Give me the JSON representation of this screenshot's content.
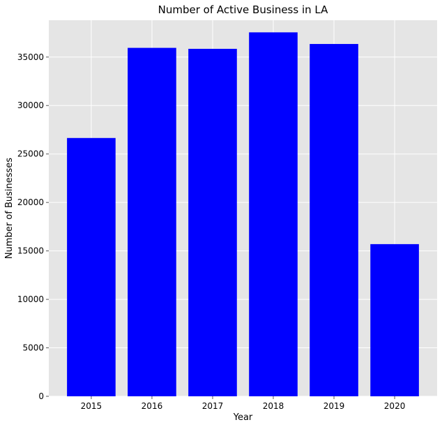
{
  "chart_data": {
    "type": "bar",
    "title": "Number of Active Business in LA",
    "xlabel": "Year",
    "ylabel": "Number of Businesses",
    "categories": [
      "2015",
      "2016",
      "2017",
      "2018",
      "2019",
      "2020"
    ],
    "values": [
      26650,
      35950,
      35850,
      37550,
      36350,
      15700
    ],
    "ylim": [
      0,
      38800
    ],
    "yticks": [
      0,
      5000,
      10000,
      15000,
      20000,
      25000,
      30000,
      35000
    ],
    "grid": true,
    "colors": {
      "bar": "#0000ff",
      "plot_background": "#e5e5e5",
      "grid": "#ffffff"
    }
  }
}
